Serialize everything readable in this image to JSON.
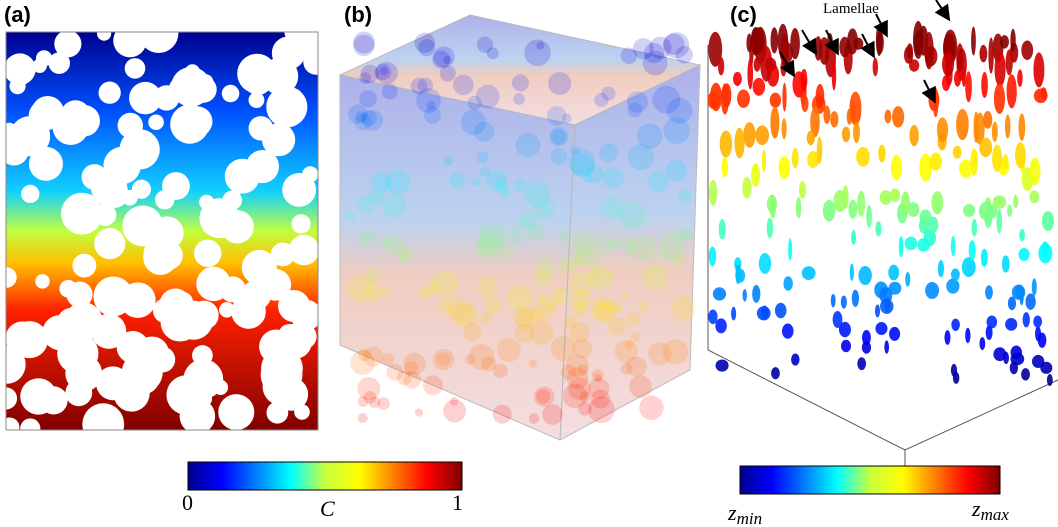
{
  "panels": [
    {
      "label": "(a)"
    },
    {
      "label": "(b)"
    },
    {
      "label": "(c)",
      "annotation": "Lamellae"
    }
  ],
  "colorbars": [
    {
      "ticks": [
        0,
        1
      ],
      "label": "C"
    },
    {
      "ends": [
        {
          "symbol": "z",
          "subscript": "min"
        },
        {
          "symbol": "z",
          "subscript": "max"
        }
      ]
    }
  ]
}
